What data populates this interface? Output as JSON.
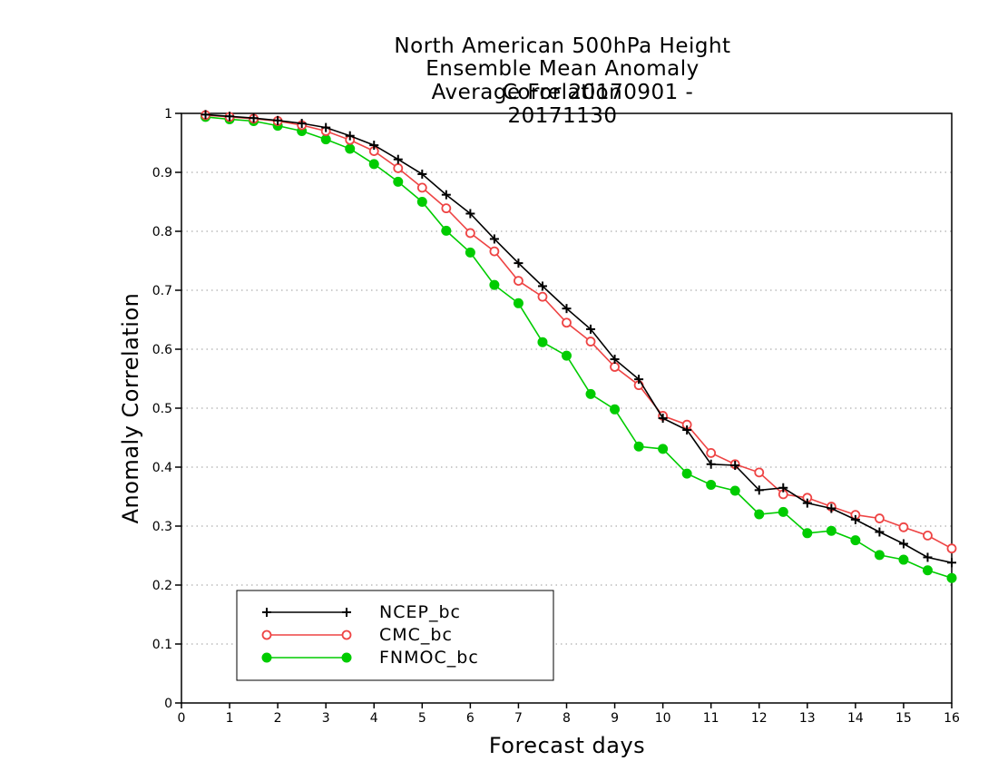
{
  "chart_data": {
    "type": "line",
    "title": [
      "North American 500hPa Height",
      "Ensemble Mean Anomaly Correlation",
      "Average For 20170901 - 20171130"
    ],
    "xlabel": "Forecast days",
    "ylabel": "Anomaly Correlation",
    "xlim": [
      0,
      16
    ],
    "ylim": [
      0,
      1
    ],
    "xticks": [
      "0",
      "1",
      "2",
      "3",
      "4",
      "5",
      "6",
      "7",
      "8",
      "9",
      "10",
      "11",
      "12",
      "13",
      "14",
      "15",
      "16"
    ],
    "yticks": [
      "0",
      "0.1",
      "0.2",
      "0.3",
      "0.4",
      "0.5",
      "0.6",
      "0.7",
      "0.8",
      "0.9",
      "1"
    ],
    "grid": "horizontal dotted",
    "legend_position": "bottom-left",
    "x": [
      0.5,
      1,
      1.5,
      2,
      2.5,
      3,
      3.5,
      4,
      4.5,
      5,
      5.5,
      6,
      6.5,
      7,
      7.5,
      8,
      8.5,
      9,
      9.5,
      10,
      10.5,
      11,
      11.5,
      12,
      12.5,
      13,
      13.5,
      14,
      14.5,
      15,
      15.5,
      16
    ],
    "series": [
      {
        "name": "NCEP_bc",
        "color": "#000000",
        "marker": "plus",
        "values": [
          0.998,
          0.995,
          0.992,
          0.988,
          0.983,
          0.976,
          0.962,
          0.946,
          0.922,
          0.897,
          0.862,
          0.83,
          0.787,
          0.746,
          0.707,
          0.669,
          0.634,
          0.583,
          0.549,
          0.483,
          0.463,
          0.405,
          0.403,
          0.361,
          0.365,
          0.339,
          0.33,
          0.311,
          0.29,
          0.27,
          0.247,
          0.238
        ]
      },
      {
        "name": "CMC_bc",
        "color": "#ee4444",
        "marker": "open-circle",
        "values": [
          0.997,
          0.994,
          0.991,
          0.987,
          0.98,
          0.97,
          0.955,
          0.936,
          0.907,
          0.874,
          0.839,
          0.797,
          0.766,
          0.716,
          0.689,
          0.645,
          0.613,
          0.57,
          0.539,
          0.487,
          0.472,
          0.424,
          0.405,
          0.391,
          0.354,
          0.348,
          0.333,
          0.319,
          0.313,
          0.298,
          0.284,
          0.262
        ]
      },
      {
        "name": "FNMOC_bc",
        "color": "#00cc00",
        "marker": "filled-circle",
        "values": [
          0.994,
          0.99,
          0.987,
          0.979,
          0.97,
          0.956,
          0.94,
          0.914,
          0.884,
          0.85,
          0.801,
          0.764,
          0.709,
          0.678,
          0.612,
          0.589,
          0.524,
          0.498,
          0.435,
          0.431,
          0.389,
          0.37,
          0.36,
          0.32,
          0.324,
          0.288,
          0.292,
          0.276,
          0.251,
          0.243,
          0.225,
          0.212
        ]
      }
    ]
  }
}
